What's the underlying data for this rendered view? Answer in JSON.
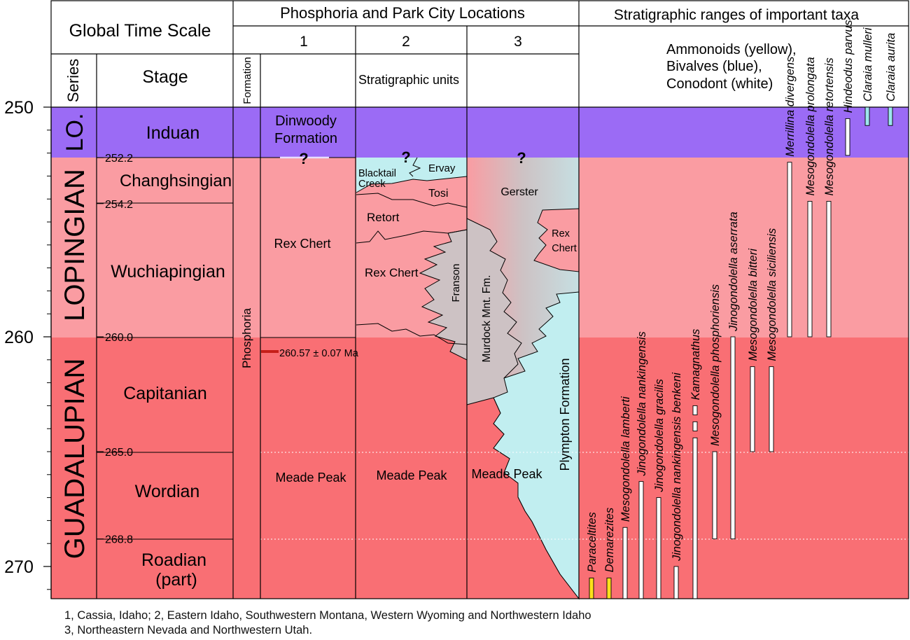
{
  "header": {
    "global_time_scale": "Global Time Scale",
    "locations_title": "Phosphoria and Park City Locations",
    "taxa_title": "Stratigraphic ranges of important taxa",
    "location_numbers": [
      "1",
      "2",
      "3"
    ],
    "series_label": "Series",
    "stage_label": "Stage",
    "formation_label": "Formation",
    "units_label": "Stratigraphic units",
    "taxa_legend": [
      "Ammonoids (yellow),",
      "Bivalves (blue),",
      "Conodont (white)"
    ]
  },
  "axis": {
    "ticks": [
      {
        "value": 250,
        "label": "250"
      },
      {
        "value": 260,
        "label": "260"
      },
      {
        "value": 270,
        "label": "270"
      }
    ],
    "top_value": 248.0,
    "bottom_value": 271.4
  },
  "series": [
    {
      "name": "LO.",
      "from": 250,
      "to": 252.2
    },
    {
      "name": "LOPINGIAN",
      "from": 252.2,
      "to": 260.0
    },
    {
      "name": "GUADALUPIAN",
      "from": 260.0,
      "to": 271.4
    }
  ],
  "stages": [
    {
      "name": "Induan",
      "from": 250,
      "to": 252.2,
      "color": "#9b6bf5"
    },
    {
      "name": "Changhsingian",
      "from": 252.2,
      "to": 254.2,
      "color": "#fa9ca2"
    },
    {
      "name": "Wuchiapingian",
      "from": 254.2,
      "to": 260.0,
      "color": "#fa9ca2"
    },
    {
      "name": "Capitanian",
      "from": 260.0,
      "to": 265.0,
      "color": "#f96f74"
    },
    {
      "name": "Wordian",
      "from": 265.0,
      "to": 268.8,
      "color": "#f96f74"
    },
    {
      "name": "Roadian (part)",
      "from": 268.8,
      "to": 271.4,
      "color": "#f96f74"
    }
  ],
  "boundaries": [
    {
      "value": 252.2,
      "label": "252.2"
    },
    {
      "value": 254.2,
      "label": "254.2"
    },
    {
      "value": 260.0,
      "label": "260.0"
    },
    {
      "value": 265.0,
      "label": "265.0"
    },
    {
      "value": 268.8,
      "label": "268.8"
    }
  ],
  "formation_col": {
    "name": "Phosphoria"
  },
  "location1": {
    "units": [
      "Dinwoody",
      "Formation",
      "Rex Chert",
      "Meade Peak"
    ],
    "question": "?",
    "date_label": "260.57 ± 0.07 Ma"
  },
  "location2": {
    "units": [
      "Blacktail",
      "Creek",
      "Ervay",
      "Tosi",
      "Retort",
      "Rex Chert",
      "Franson",
      "Meade Peak"
    ],
    "question": "?"
  },
  "location3": {
    "units": [
      "Gerster",
      "Rex",
      "Chert",
      "Murdock Mnt. Fm.",
      "Plympton Formation",
      "Meade Peak"
    ],
    "question": "?"
  },
  "taxa": [
    {
      "name": "Paraceltites",
      "group": "ammonoid",
      "segments": [
        [
          270.5,
          271.4
        ]
      ]
    },
    {
      "name": "Demarezites",
      "group": "ammonoid",
      "segments": [
        [
          270.5,
          271.4
        ]
      ]
    },
    {
      "name": "Mesogondolella lamberti",
      "group": "conodont",
      "segments": [
        [
          268.3,
          271.4
        ]
      ]
    },
    {
      "name": "Jinogondolella nankingensis",
      "group": "conodont",
      "segments": [
        [
          266.3,
          271.4
        ]
      ]
    },
    {
      "name": "Jinogondolella gracilis",
      "group": "conodont",
      "segments": [
        [
          267.0,
          271.4
        ]
      ]
    },
    {
      "name": "Jinogondolella nankingensis benkeni",
      "group": "conodont",
      "segments": [
        [
          270.0,
          271.4
        ]
      ]
    },
    {
      "name": "Kamagnathus",
      "group": "conodont",
      "segments": [
        [
          263.0,
          263.4
        ],
        [
          263.7,
          264.1
        ],
        [
          264.4,
          271.4
        ]
      ]
    },
    {
      "name": "Mesogondolella phosphoriensis",
      "group": "conodont",
      "segments": [
        [
          265.0,
          268.8
        ]
      ]
    },
    {
      "name": "Jinogondolella aserrata",
      "group": "conodont",
      "segments": [
        [
          260.0,
          268.8
        ]
      ]
    },
    {
      "name": "Mesogondolella bitteri",
      "group": "conodont",
      "segments": [
        [
          261.3,
          265.0
        ]
      ]
    },
    {
      "name": "Mesogondolella  siciliensis",
      "group": "conodont",
      "segments": [
        [
          261.3,
          265.0
        ]
      ]
    },
    {
      "name": "Merrillina divergens",
      "group": "conodont",
      "segments": [
        [
          252.4,
          260.0
        ]
      ]
    },
    {
      "name": "Mesogondolella prolongata",
      "group": "conodont",
      "segments": [
        [
          254.1,
          260.0
        ]
      ]
    },
    {
      "name": "Mesogondolella retortensis",
      "group": "conodont",
      "segments": [
        [
          254.1,
          260.0
        ]
      ]
    },
    {
      "name": "Hindeodus parvus",
      "group": "conodont",
      "segments": [
        [
          250.5,
          252.1
        ]
      ]
    },
    {
      "name": "Claraia mulleri",
      "group": "bivalve",
      "segments": [
        [
          250.0,
          250.8
        ]
      ]
    },
    {
      "name": "Claraia aurita",
      "group": "bivalve",
      "segments": [
        [
          250.0,
          250.8
        ]
      ]
    }
  ],
  "colors": {
    "induan": "#9b6bf5",
    "lopingian": "#fa9ca2",
    "guadalupian": "#f96f74",
    "cyan": "#c1eef0",
    "gray": "#cdc2c4",
    "ammonoid": "#ffe11a",
    "conodont": "#ffffff",
    "bivalve": "#9ee6ef",
    "date_mark": "#c61f19"
  },
  "footnotes": [
    "1,  Cassia, Idaho; 2, Eastern Idaho, Southwestern Montana, Western Wyoming and Northwestern Idaho",
    "3, Northeastern Nevada and Northwestern Utah."
  ]
}
